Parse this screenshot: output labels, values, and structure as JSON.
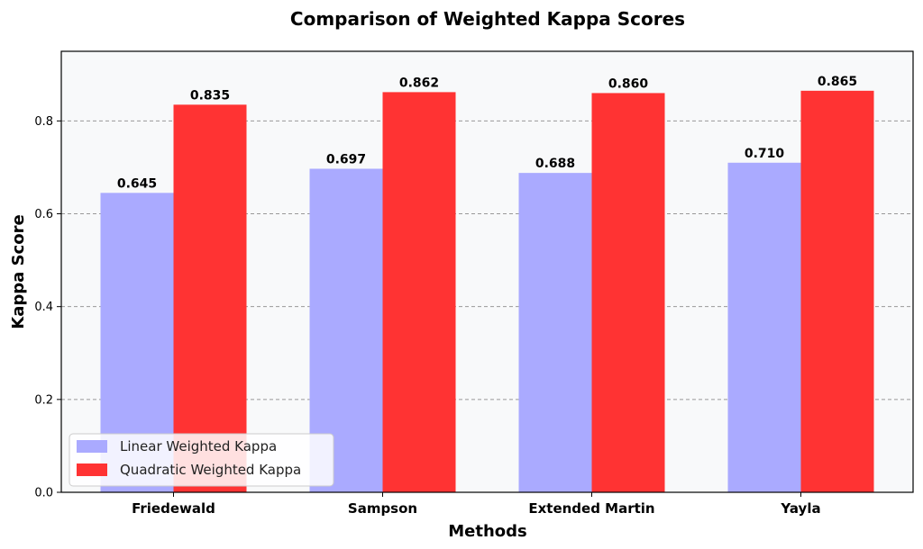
{
  "chart_data": {
    "type": "bar",
    "title": "Comparison of Weighted Kappa Scores",
    "xlabel": "Methods",
    "ylabel": "Kappa Score",
    "categories": [
      "Friedewald",
      "Sampson",
      "Extended Martin",
      "Yayla"
    ],
    "series": [
      {
        "name": "Linear Weighted Kappa",
        "values": [
          0.645,
          0.697,
          0.688,
          0.71
        ],
        "color": "#aaaaff"
      },
      {
        "name": "Quadratic Weighted Kappa",
        "values": [
          0.835,
          0.862,
          0.86,
          0.865
        ],
        "color": "#ff3333"
      }
    ],
    "value_labels": [
      [
        "0.645",
        "0.697",
        "0.688",
        "0.710"
      ],
      [
        "0.835",
        "0.862",
        "0.860",
        "0.865"
      ]
    ],
    "ylim": [
      0,
      0.95
    ],
    "yticks": [
      0.0,
      0.2,
      0.4,
      0.6,
      0.8
    ],
    "ytick_labels": [
      "0.0",
      "0.2",
      "0.4",
      "0.6",
      "0.8"
    ],
    "grid": true,
    "legend_position": "lower-left",
    "background_color": "#f8f9fa"
  }
}
